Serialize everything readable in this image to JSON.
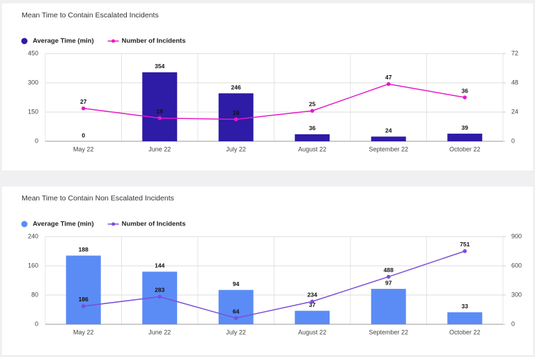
{
  "chart_data": [
    {
      "type": "bar",
      "title": "Mean Time to Contain Escalated Incidents",
      "categories": [
        "May 22",
        "June 22",
        "July 22",
        "August 22",
        "September 22",
        "October 22"
      ],
      "series": [
        {
          "name": "Average Time (min)",
          "type": "bar",
          "color": "#2e1ba6",
          "values": [
            0,
            354,
            246,
            36,
            24,
            39
          ]
        },
        {
          "name": "Number of Incidents",
          "type": "line",
          "axis": "y2",
          "color": "#e619c8",
          "values": [
            27,
            19,
            18,
            25,
            47,
            36
          ]
        }
      ],
      "ylim": [
        0,
        450
      ],
      "yticks": [
        0,
        150,
        300,
        450
      ],
      "y2lim": [
        0,
        72
      ],
      "y2ticks": [
        0,
        24,
        48,
        72
      ],
      "grid": true
    },
    {
      "type": "bar",
      "title": "Mean Time to Contain Non Escalated Incidents",
      "categories": [
        "May 22",
        "June 22",
        "July 22",
        "August 22",
        "September 22",
        "October 22"
      ],
      "series": [
        {
          "name": "Average Time (min)",
          "type": "bar",
          "color": "#5b8cf6",
          "values": [
            188,
            144,
            94,
            37,
            97,
            33
          ]
        },
        {
          "name": "Number of Incidents",
          "type": "line",
          "axis": "y2",
          "color": "#7b4ed8",
          "values": [
            186,
            283,
            64,
            234,
            488,
            751
          ]
        }
      ],
      "ylim": [
        0,
        240
      ],
      "yticks": [
        0,
        80,
        160,
        240
      ],
      "y2lim": [
        0,
        900
      ],
      "y2ticks": [
        0,
        300,
        600,
        900
      ],
      "grid": true
    }
  ]
}
